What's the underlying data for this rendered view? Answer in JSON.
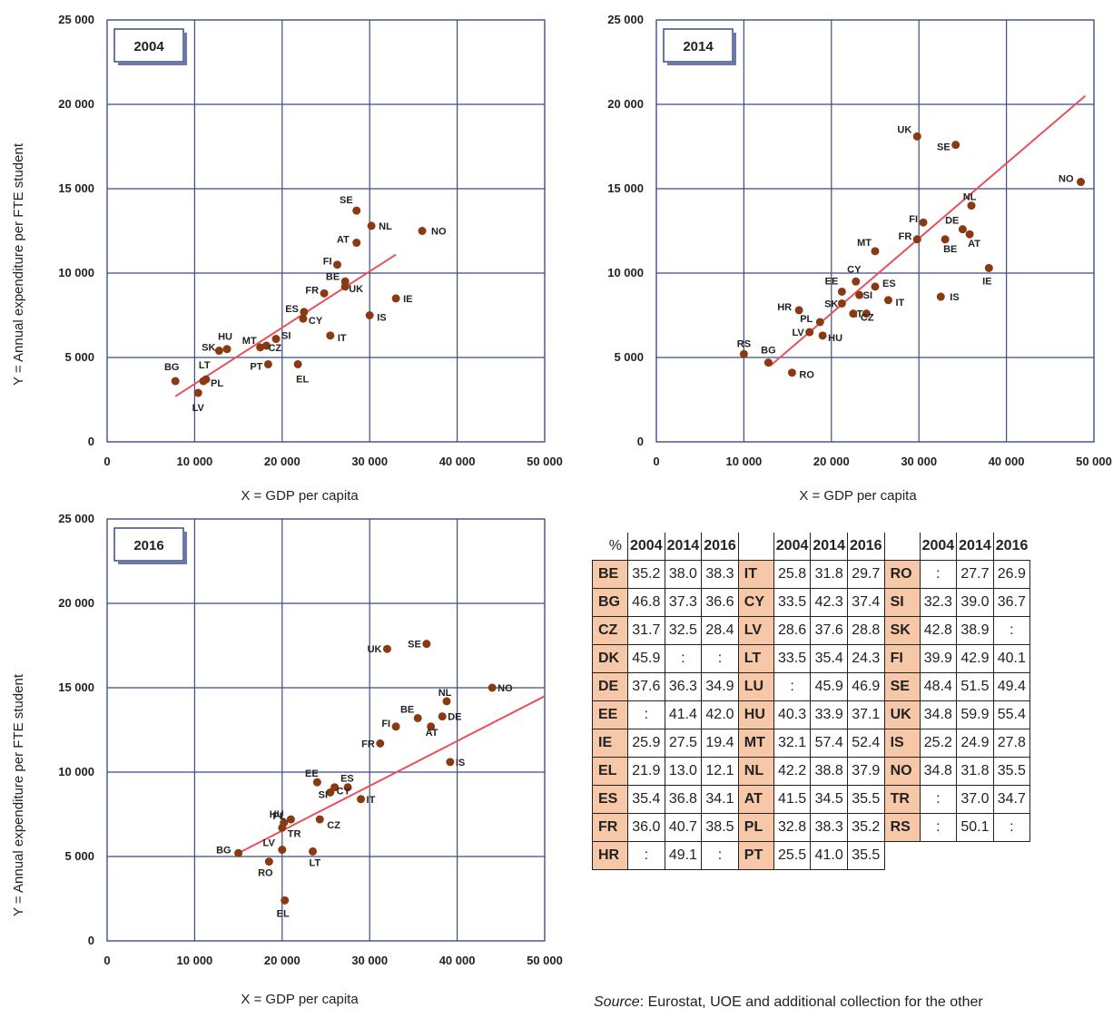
{
  "colors": {
    "dot": "#8a3a12",
    "line": "#e8505b",
    "grid": "#3c4c86",
    "table_code_bg": "#f7c8a8"
  },
  "chart_data": [
    {
      "type": "scatter",
      "title": "2004",
      "xlabel": "X = GDP per capita",
      "ylabel": "Y = Annual expenditure per FTE student",
      "xlim": [
        0,
        50000
      ],
      "ylim": [
        0,
        25000
      ],
      "x_ticks": [
        0,
        10000,
        20000,
        30000,
        40000,
        50000
      ],
      "y_ticks": [
        0,
        5000,
        10000,
        15000,
        20000,
        25000
      ],
      "x_tick_labels": [
        "0",
        "10 000",
        "20 000",
        "30 000",
        "40 000",
        "50 000"
      ],
      "y_tick_labels": [
        "0",
        "5 000",
        "10 000",
        "15 000",
        "20 000",
        "25 000"
      ],
      "grid": true,
      "trend_line": {
        "x": [
          7800,
          33000
        ],
        "y": [
          2700,
          11100
        ]
      },
      "points": [
        {
          "label": "SE",
          "x": 28500,
          "y": 13700
        },
        {
          "label": "NL",
          "x": 30200,
          "y": 12800
        },
        {
          "label": "NO",
          "x": 36000,
          "y": 12500
        },
        {
          "label": "AT",
          "x": 28500,
          "y": 11800
        },
        {
          "label": "FI",
          "x": 26300,
          "y": 10500
        },
        {
          "label": "BE",
          "x": 27200,
          "y": 9500
        },
        {
          "label": "UK",
          "x": 27200,
          "y": 9200
        },
        {
          "label": "FR",
          "x": 24800,
          "y": 8800
        },
        {
          "label": "IE",
          "x": 33000,
          "y": 8500
        },
        {
          "label": "ES",
          "x": 22500,
          "y": 7700
        },
        {
          "label": "CY",
          "x": 22400,
          "y": 7300
        },
        {
          "label": "IS",
          "x": 30000,
          "y": 7500
        },
        {
          "label": "IT",
          "x": 25500,
          "y": 6300
        },
        {
          "label": "SI",
          "x": 19300,
          "y": 6100
        },
        {
          "label": "MT",
          "x": 17500,
          "y": 5600
        },
        {
          "label": "CZ",
          "x": 18200,
          "y": 5700
        },
        {
          "label": "HU",
          "x": 13700,
          "y": 5500
        },
        {
          "label": "SK",
          "x": 12800,
          "y": 5400
        },
        {
          "label": "PT",
          "x": 18400,
          "y": 4600
        },
        {
          "label": "EL",
          "x": 21800,
          "y": 4600
        },
        {
          "label": "BG",
          "x": 7800,
          "y": 3600
        },
        {
          "label": "LT",
          "x": 11300,
          "y": 3700
        },
        {
          "label": "PL",
          "x": 11000,
          "y": 3600
        },
        {
          "label": "LV",
          "x": 10400,
          "y": 2900
        }
      ]
    },
    {
      "type": "scatter",
      "title": "2014",
      "xlabel": "X = GDP per capita",
      "ylabel": "",
      "xlim": [
        0,
        50000
      ],
      "ylim": [
        0,
        25000
      ],
      "x_ticks": [
        0,
        10000,
        20000,
        30000,
        40000,
        50000
      ],
      "y_ticks": [
        0,
        5000,
        10000,
        15000,
        20000,
        25000
      ],
      "x_tick_labels": [
        "0",
        "10 000",
        "20 000",
        "30 000",
        "40 000",
        "50 000"
      ],
      "y_tick_labels": [
        "0",
        "5 000",
        "10 000",
        "15 000",
        "20 000",
        "25 000"
      ],
      "grid": true,
      "trend_line": {
        "x": [
          13000,
          49000
        ],
        "y": [
          4500,
          20500
        ]
      },
      "points": [
        {
          "label": "UK",
          "x": 29800,
          "y": 18100
        },
        {
          "label": "SE",
          "x": 34200,
          "y": 17600
        },
        {
          "label": "NO",
          "x": 48500,
          "y": 15400
        },
        {
          "label": "NL",
          "x": 36000,
          "y": 14000
        },
        {
          "label": "DE",
          "x": 35000,
          "y": 12600
        },
        {
          "label": "AT",
          "x": 35800,
          "y": 12300
        },
        {
          "label": "FI",
          "x": 30500,
          "y": 13000
        },
        {
          "label": "FR",
          "x": 29800,
          "y": 12000
        },
        {
          "label": "BE",
          "x": 33000,
          "y": 12000
        },
        {
          "label": "MT",
          "x": 25000,
          "y": 11300
        },
        {
          "label": "IE",
          "x": 38000,
          "y": 10300
        },
        {
          "label": "CY",
          "x": 22800,
          "y": 9500
        },
        {
          "label": "EE",
          "x": 21200,
          "y": 8900
        },
        {
          "label": "SI",
          "x": 23200,
          "y": 8700
        },
        {
          "label": "ES",
          "x": 25000,
          "y": 9200
        },
        {
          "label": "IT",
          "x": 26500,
          "y": 8400
        },
        {
          "label": "IS",
          "x": 32500,
          "y": 8600
        },
        {
          "label": "SK",
          "x": 21200,
          "y": 8200
        },
        {
          "label": "HR",
          "x": 16300,
          "y": 7800
        },
        {
          "label": "LT",
          "x": 24000,
          "y": 7600
        },
        {
          "label": "CZ",
          "x": 22500,
          "y": 7600
        },
        {
          "label": "PL",
          "x": 18700,
          "y": 7100
        },
        {
          "label": "LV",
          "x": 17500,
          "y": 6500
        },
        {
          "label": "HU",
          "x": 19000,
          "y": 6300
        },
        {
          "label": "RS",
          "x": 10000,
          "y": 5200
        },
        {
          "label": "BG",
          "x": 12800,
          "y": 4700
        },
        {
          "label": "RO",
          "x": 15500,
          "y": 4100
        }
      ]
    },
    {
      "type": "scatter",
      "title": "2016",
      "xlabel": "X = GDP per capita",
      "ylabel": "Y = Annual expenditure per FTE student",
      "xlim": [
        0,
        50000
      ],
      "ylim": [
        0,
        25000
      ],
      "x_ticks": [
        0,
        10000,
        20000,
        30000,
        40000,
        50000
      ],
      "y_ticks": [
        0,
        5000,
        10000,
        15000,
        20000,
        25000
      ],
      "x_tick_labels": [
        "0",
        "10 000",
        "20 000",
        "30 000",
        "40 000",
        "50 000"
      ],
      "y_tick_labels": [
        "0",
        "5 000",
        "10 000",
        "15 000",
        "20 000",
        "25 000"
      ],
      "grid": true,
      "trend_line": {
        "x": [
          15000,
          50000
        ],
        "y": [
          5200,
          14500
        ]
      },
      "points": [
        {
          "label": "SE",
          "x": 36500,
          "y": 17600
        },
        {
          "label": "UK",
          "x": 32000,
          "y": 17300
        },
        {
          "label": "NO",
          "x": 44000,
          "y": 15000
        },
        {
          "label": "NL",
          "x": 38800,
          "y": 14200
        },
        {
          "label": "BE",
          "x": 35500,
          "y": 13200
        },
        {
          "label": "DE",
          "x": 38300,
          "y": 13300
        },
        {
          "label": "AT",
          "x": 37000,
          "y": 12700
        },
        {
          "label": "FI",
          "x": 33000,
          "y": 12700
        },
        {
          "label": "FR",
          "x": 31200,
          "y": 11700
        },
        {
          "label": "IS",
          "x": 39200,
          "y": 10600
        },
        {
          "label": "EE",
          "x": 24000,
          "y": 9400
        },
        {
          "label": "ES",
          "x": 27500,
          "y": 9100
        },
        {
          "label": "SI",
          "x": 25500,
          "y": 8800
        },
        {
          "label": "CY",
          "x": 26000,
          "y": 9100
        },
        {
          "label": "IT",
          "x": 29000,
          "y": 8400
        },
        {
          "label": "CZ",
          "x": 24300,
          "y": 7200
        },
        {
          "label": "HU",
          "x": 20200,
          "y": 7000
        },
        {
          "label": "PL",
          "x": 21000,
          "y": 7200
        },
        {
          "label": "TR",
          "x": 20000,
          "y": 6700
        },
        {
          "label": "LV",
          "x": 20000,
          "y": 5400
        },
        {
          "label": "LT",
          "x": 23500,
          "y": 5300
        },
        {
          "label": "BG",
          "x": 15000,
          "y": 5200
        },
        {
          "label": "RO",
          "x": 18500,
          "y": 4700
        },
        {
          "label": "EL",
          "x": 20300,
          "y": 2400
        }
      ]
    }
  ],
  "table": {
    "corner": "%",
    "years": [
      "2004",
      "2014",
      "2016"
    ],
    "rows": [
      [
        [
          "BE",
          "35.2",
          "38.0",
          "38.3"
        ],
        [
          "IT",
          "25.8",
          "31.8",
          "29.7"
        ],
        [
          "RO",
          ":",
          "27.7",
          "26.9"
        ]
      ],
      [
        [
          "BG",
          "46.8",
          "37.3",
          "36.6"
        ],
        [
          "CY",
          "33.5",
          "42.3",
          "37.4"
        ],
        [
          "SI",
          "32.3",
          "39.0",
          "36.7"
        ]
      ],
      [
        [
          "CZ",
          "31.7",
          "32.5",
          "28.4"
        ],
        [
          "LV",
          "28.6",
          "37.6",
          "28.8"
        ],
        [
          "SK",
          "42.8",
          "38.9",
          ":"
        ]
      ],
      [
        [
          "DK",
          "45.9",
          ":",
          ":"
        ],
        [
          "LT",
          "33.5",
          "35.4",
          "24.3"
        ],
        [
          "FI",
          "39.9",
          "42.9",
          "40.1"
        ]
      ],
      [
        [
          "DE",
          "37.6",
          "36.3",
          "34.9"
        ],
        [
          "LU",
          ":",
          "45.9",
          "46.9"
        ],
        [
          "SE",
          "48.4",
          "51.5",
          "49.4"
        ]
      ],
      [
        [
          "EE",
          ":",
          "41.4",
          "42.0"
        ],
        [
          "HU",
          "40.3",
          "33.9",
          "37.1"
        ],
        [
          "UK",
          "34.8",
          "59.9",
          "55.4"
        ]
      ],
      [
        [
          "IE",
          "25.9",
          "27.5",
          "19.4"
        ],
        [
          "MT",
          "32.1",
          "57.4",
          "52.4"
        ],
        [
          "IS",
          "25.2",
          "24.9",
          "27.8"
        ]
      ],
      [
        [
          "EL",
          "21.9",
          "13.0",
          "12.1"
        ],
        [
          "NL",
          "42.2",
          "38.8",
          "37.9"
        ],
        [
          "NO",
          "34.8",
          "31.8",
          "35.5"
        ]
      ],
      [
        [
          "ES",
          "35.4",
          "36.8",
          "34.1"
        ],
        [
          "AT",
          "41.5",
          "34.5",
          "35.5"
        ],
        [
          "TR",
          ":",
          "37.0",
          "34.7"
        ]
      ],
      [
        [
          "FR",
          "36.0",
          "40.7",
          "38.5"
        ],
        [
          "PL",
          "32.8",
          "38.3",
          "35.2"
        ],
        [
          "RS",
          ":",
          "50.1",
          ":"
        ]
      ],
      [
        [
          "HR",
          ":",
          "49.1",
          ":"
        ],
        [
          "PT",
          "25.5",
          "41.0",
          "35.5"
        ]
      ]
    ]
  },
  "source": {
    "prefix": "Source",
    "text": ": Eurostat, UOE and additional collection for the other"
  }
}
